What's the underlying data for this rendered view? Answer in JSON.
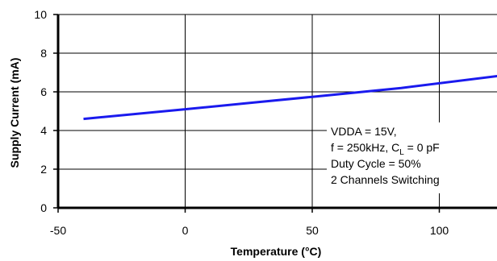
{
  "chart_data": {
    "type": "line",
    "xlabel": "Temperature (°C)",
    "ylabel": "Supply Current (mA)",
    "xlim": [
      -50,
      125
    ],
    "ylim": [
      0,
      10
    ],
    "x_ticks": [
      "-50",
      "0",
      "50",
      "100"
    ],
    "y_ticks": [
      "0",
      "2",
      "4",
      "6",
      "8",
      "10"
    ],
    "grid": true,
    "series": [
      {
        "x": [
          -40,
          0,
          25,
          50,
          85,
          125
        ],
        "values": [
          4.6,
          5.1,
          5.42,
          5.74,
          6.2,
          6.85
        ],
        "color": "#1a1aee"
      }
    ],
    "annotation": {
      "line1": "VDDA = 15V,",
      "line2_prefix": "f = 250kHz, C",
      "line2_sub": "L",
      "line2_suffix": " = 0 pF",
      "line3": "Duty Cycle = 50%",
      "line4": "2 Channels Switching"
    }
  }
}
